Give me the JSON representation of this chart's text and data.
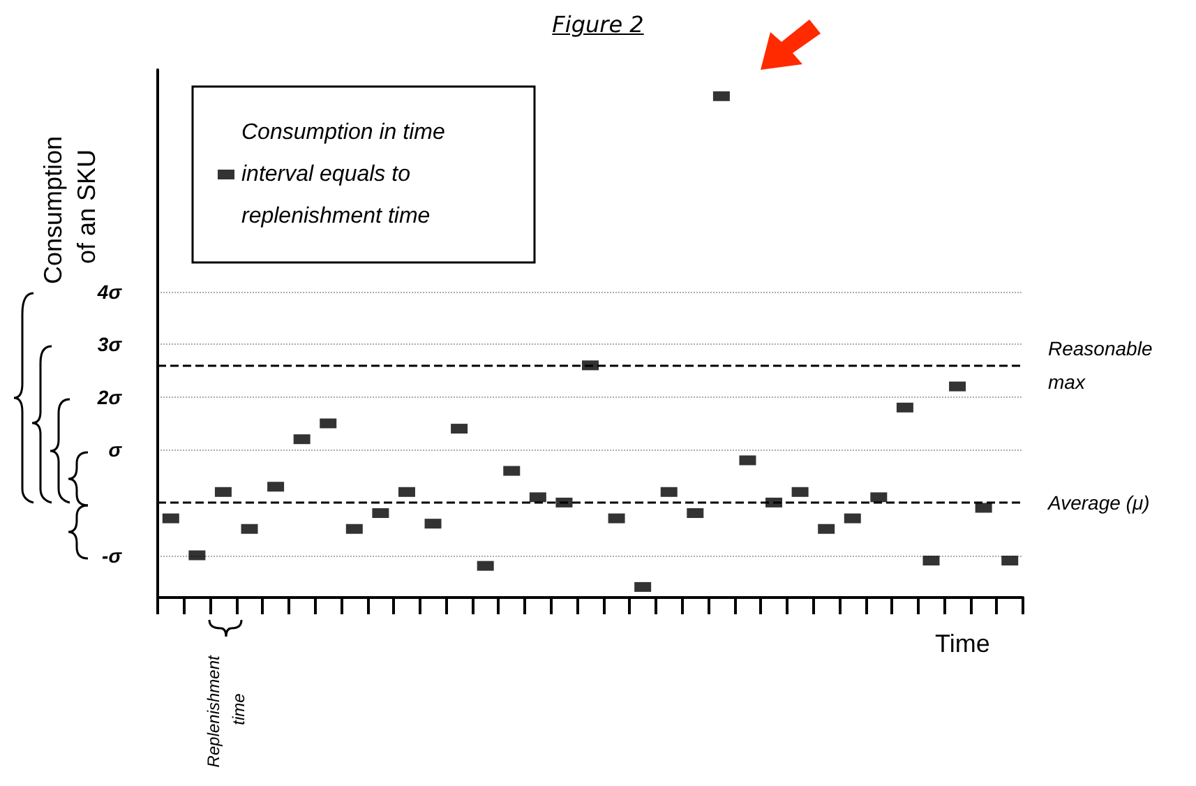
{
  "chart_data": {
    "type": "scatter",
    "title": "Figure 2",
    "ylabel": "Consumption of an SKU",
    "xlabel": "Time",
    "annotations": [
      "Replenishment time"
    ],
    "categories": [
      null,
      null,
      null,
      null,
      null,
      null,
      null,
      null,
      null,
      null,
      null,
      null,
      null,
      null,
      null,
      null,
      null,
      null,
      null,
      null,
      null,
      null,
      null,
      null,
      null,
      null,
      null,
      null,
      null,
      null,
      null,
      null,
      null
    ],
    "series": [
      {
        "name": "Consumption in time interval equals to replenishment time",
        "color": "#000000",
        "values": [
          -0.3,
          -1.0,
          0.2,
          -0.5,
          0.3,
          1.2,
          1.5,
          -0.5,
          -0.2,
          0.2,
          -0.4,
          1.4,
          -1.2,
          0.6,
          0.1,
          0.0,
          2.6,
          -0.3,
          -1.6,
          0.2,
          -0.2,
          7.7,
          0.8,
          0.0,
          0.2,
          -0.5,
          -0.3,
          0.1,
          1.8,
          -1.1,
          2.2,
          -0.1,
          -1.1
        ]
      }
    ],
    "ylim": [
      -1.8,
      8.2
    ],
    "yticks": [
      {
        "value": -1,
        "label": "-σ"
      },
      {
        "value": 1,
        "label": "σ"
      },
      {
        "value": 2,
        "label": "2σ"
      },
      {
        "value": 3,
        "label": "3σ"
      },
      {
        "value": 4,
        "label": "4σ"
      }
    ],
    "grid": "y",
    "legend": "top left",
    "marker": "square",
    "ref_lines": [
      {
        "axis": "y",
        "value": 2.6,
        "label": "Reasonable max",
        "line_style": "dashed"
      },
      {
        "axis": "y",
        "value": 0,
        "label": "Average (μ)",
        "line_style": "dashed"
      }
    ]
  }
}
